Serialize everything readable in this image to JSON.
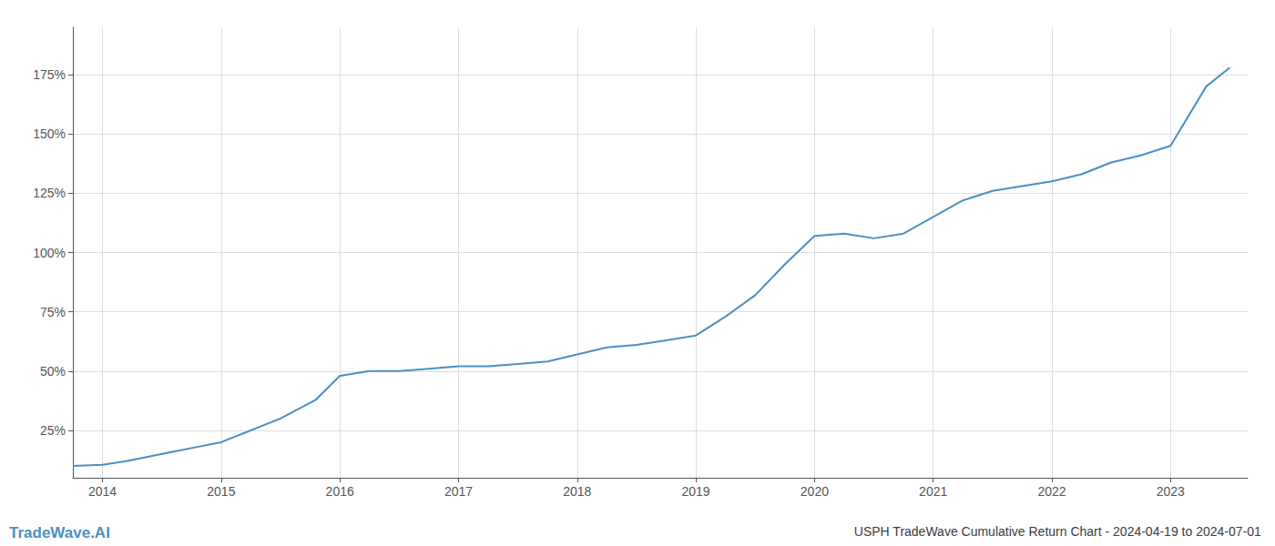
{
  "chart_data": {
    "type": "line",
    "title": "USPH TradeWave Cumulative Return Chart - 2024-04-19 to 2024-07-01",
    "annotations": [
      {
        "text": "TradeWave.AI",
        "color": "#4a90c4"
      }
    ],
    "x": [
      2013.75,
      2014.0,
      2014.2,
      2014.4,
      2014.6,
      2014.8,
      2015.0,
      2015.2,
      2015.5,
      2015.8,
      2016.0,
      2016.25,
      2016.5,
      2016.75,
      2017.0,
      2017.25,
      2017.5,
      2017.75,
      2018.0,
      2018.25,
      2018.5,
      2018.75,
      2019.0,
      2019.25,
      2019.5,
      2019.75,
      2020.0,
      2020.25,
      2020.5,
      2020.75,
      2021.0,
      2021.25,
      2021.5,
      2021.75,
      2022.0,
      2022.25,
      2022.5,
      2022.75,
      2023.0,
      2023.3,
      2023.5
    ],
    "values": [
      10,
      10.5,
      12,
      14,
      16,
      18,
      20,
      24,
      30,
      38,
      48,
      50,
      50,
      51,
      52,
      52,
      53,
      54,
      57,
      60,
      61,
      63,
      65,
      73,
      82,
      95,
      107,
      108,
      106,
      108,
      115,
      122,
      126,
      128,
      130,
      133,
      138,
      141,
      145,
      170,
      178
    ],
    "color": "#4a90c4",
    "xlim": [
      2013.75,
      2023.65
    ],
    "xticks": [
      2014,
      2015,
      2016,
      2017,
      2018,
      2019,
      2020,
      2021,
      2022,
      2023
    ],
    "ylim": [
      5,
      195
    ],
    "yticks": [
      {
        "value": 25,
        "label": "25%"
      },
      {
        "value": 50,
        "label": "50%"
      },
      {
        "value": 75,
        "label": "75%"
      },
      {
        "value": 100,
        "label": "100%"
      },
      {
        "value": 125,
        "label": "125%"
      },
      {
        "value": 150,
        "label": "150%"
      },
      {
        "value": 175,
        "label": "175%"
      }
    ],
    "grid": true
  }
}
